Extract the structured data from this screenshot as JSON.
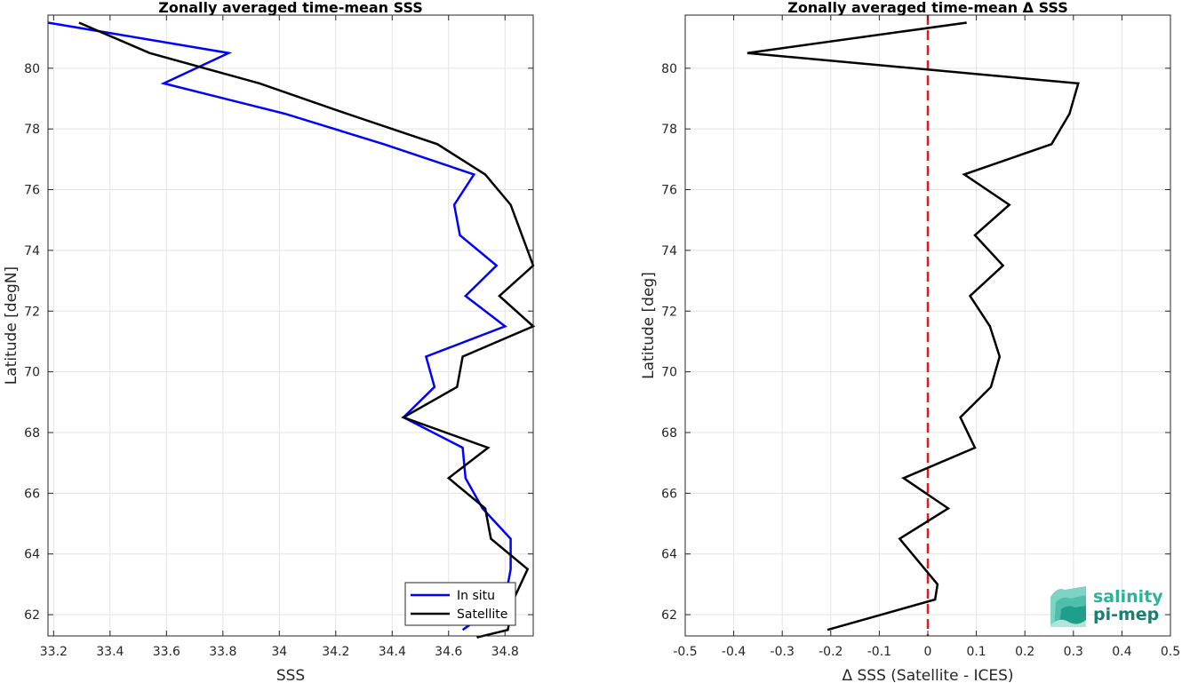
{
  "chart_data": [
    {
      "type": "line",
      "title": "Zonally averaged time-mean SSS",
      "xlabel": "SSS",
      "ylabel": "Latitude [degN]",
      "xlim": [
        33.18,
        34.9
      ],
      "ylim": [
        61.3,
        81.75
      ],
      "xticks": [
        33.2,
        33.4,
        33.6,
        33.8,
        34,
        34.2,
        34.4,
        34.6,
        34.8
      ],
      "xtick_labels": [
        "33.2",
        "33.4",
        "33.6",
        "33.8",
        "34",
        "34.2",
        "34.4",
        "34.6",
        "34.8"
      ],
      "yticks": [
        62,
        64,
        66,
        68,
        70,
        72,
        74,
        76,
        78,
        80
      ],
      "ytick_labels": [
        "62",
        "64",
        "66",
        "68",
        "70",
        "72",
        "74",
        "76",
        "78",
        "80"
      ],
      "grid": true,
      "legend_placement": "bottom-right",
      "series": [
        {
          "name": "In situ",
          "color": "#0000ff",
          "points": [
            [
              34.65,
              61.5
            ],
            [
              34.8,
              62.5
            ],
            [
              34.82,
              63.5
            ],
            [
              34.82,
              64.5
            ],
            [
              34.72,
              65.5
            ],
            [
              34.66,
              66.5
            ],
            [
              34.65,
              67.5
            ],
            [
              34.44,
              68.5
            ],
            [
              34.55,
              69.5
            ],
            [
              34.52,
              70.5
            ],
            [
              34.8,
              71.5
            ],
            [
              34.66,
              72.5
            ],
            [
              34.77,
              73.5
            ],
            [
              34.64,
              74.5
            ],
            [
              34.62,
              75.5
            ],
            [
              34.69,
              76.5
            ],
            [
              34.37,
              77.5
            ],
            [
              34.02,
              78.5
            ],
            [
              33.59,
              79.5
            ],
            [
              33.82,
              80.5
            ],
            [
              33.18,
              81.5
            ]
          ]
        },
        {
          "name": "Satellite",
          "color": "#000000",
          "points": [
            [
              34.7,
              61.25
            ],
            [
              34.81,
              61.5
            ],
            [
              34.83,
              62.5
            ],
            [
              34.88,
              63.5
            ],
            [
              34.75,
              64.5
            ],
            [
              34.73,
              65.5
            ],
            [
              34.6,
              66.5
            ],
            [
              34.74,
              67.5
            ],
            [
              34.44,
              68.5
            ],
            [
              34.63,
              69.5
            ],
            [
              34.65,
              70.5
            ],
            [
              34.9,
              71.5
            ],
            [
              34.78,
              72.5
            ],
            [
              34.9,
              73.5
            ],
            [
              34.86,
              74.5
            ],
            [
              34.82,
              75.5
            ],
            [
              34.73,
              76.5
            ],
            [
              34.56,
              77.5
            ],
            [
              34.24,
              78.5
            ],
            [
              33.93,
              79.5
            ],
            [
              33.54,
              80.5
            ],
            [
              33.29,
              81.5
            ]
          ]
        }
      ]
    },
    {
      "type": "line",
      "title": "Zonally averaged time-mean Δ SSS",
      "xlabel": "Δ SSS (Satellite - ICES)",
      "ylabel": "Latitude [deg]",
      "xlim": [
        -0.5,
        0.5
      ],
      "ylim": [
        61.3,
        81.75
      ],
      "xticks": [
        -0.5,
        -0.4,
        -0.3,
        -0.2,
        -0.1,
        0,
        0.1,
        0.2,
        0.3,
        0.4,
        0.5
      ],
      "xtick_labels": [
        "-0.5",
        "-0.4",
        "-0.3",
        "-0.2",
        "-0.1",
        "0",
        "0.1",
        "0.2",
        "0.3",
        "0.4",
        "0.5"
      ],
      "yticks": [
        62,
        64,
        66,
        68,
        70,
        72,
        74,
        76,
        78,
        80
      ],
      "ytick_labels": [
        "62",
        "64",
        "66",
        "68",
        "70",
        "72",
        "74",
        "76",
        "78",
        "80"
      ],
      "grid": true,
      "reference_line": {
        "x": 0,
        "color": "#e41a1c",
        "style": "dashed"
      },
      "series": [
        {
          "color": "#000000",
          "points": [
            [
              -0.207,
              61.5
            ],
            [
              0.015,
              62.5
            ],
            [
              0.02,
              63.0
            ],
            [
              -0.058,
              64.5
            ],
            [
              0.042,
              65.5
            ],
            [
              -0.05,
              66.5
            ],
            [
              0.097,
              67.5
            ],
            [
              0.067,
              68.5
            ],
            [
              0.13,
              69.5
            ],
            [
              0.148,
              70.5
            ],
            [
              0.128,
              71.5
            ],
            [
              0.087,
              72.5
            ],
            [
              0.155,
              73.5
            ],
            [
              0.097,
              74.5
            ],
            [
              0.168,
              75.5
            ],
            [
              0.075,
              76.5
            ],
            [
              0.255,
              77.5
            ],
            [
              0.292,
              78.5
            ],
            [
              0.31,
              79.5
            ],
            [
              -0.372,
              80.5
            ],
            [
              0.08,
              81.5
            ]
          ]
        }
      ]
    }
  ],
  "logo": {
    "line1": "salinity",
    "line2": "pi-mep"
  }
}
